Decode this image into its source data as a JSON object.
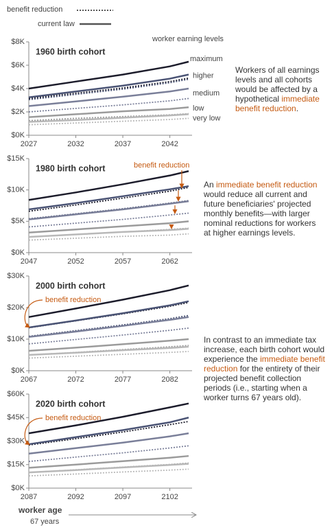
{
  "legend": [
    {
      "name": "benefit reduction",
      "dashed": true
    },
    {
      "name": "current law",
      "dashed": false
    }
  ],
  "levels_title": "worker earning levels",
  "x_axis_title": "worker age",
  "x_axis_subtitle": "67 years",
  "notes": [
    [
      {
        "text": "Workers of all earnings levels and all cohorts would be affected by a hypothetical ",
        "highlight": false
      },
      {
        "text": "immediate benefit reduction",
        "highlight": true
      },
      {
        "text": ".",
        "highlight": false
      }
    ],
    [
      {
        "text": "An ",
        "highlight": false
      },
      {
        "text": "immediate benefit reduction",
        "highlight": true
      },
      {
        "text": " would reduce all current and future beneficiaries' projected monthly benefits—with larger nominal reductions for workers at higher earnings levels.",
        "highlight": false
      }
    ],
    [
      {
        "text": "In contrast to an immediate tax increase, each birth cohort would experience the ",
        "highlight": false
      },
      {
        "text": "immediate benefit reduction",
        "highlight": true
      },
      {
        "text": " for the entirety of their projected benefit collection periods (i.e., starting when a worker turns 67 years old).",
        "highlight": false
      }
    ]
  ],
  "chart_data": [
    {
      "type": "line",
      "title": "1960 birth cohort",
      "x": [
        2027,
        2032,
        2037,
        2042,
        2044
      ],
      "xlim": [
        2027,
        2044
      ],
      "xticks": [
        2027,
        2032,
        2037,
        2042
      ],
      "ylim": [
        0,
        8000
      ],
      "yticks": [
        {
          "value": 0,
          "label": "$0K"
        },
        {
          "value": 2000,
          "label": "$2K"
        },
        {
          "value": 4000,
          "label": "$4K"
        },
        {
          "value": 6000,
          "label": "$6K"
        },
        {
          "value": 8000,
          "label": "$8K"
        }
      ],
      "series": [
        {
          "name": "maximum",
          "color": "#1c1c2b",
          "dashed": false,
          "values": [
            4000,
            4600,
            5200,
            5900,
            6300
          ]
        },
        {
          "color": "#1c1c2b",
          "dashed": true,
          "values": [
            3150,
            3600,
            4050,
            4600,
            4900
          ]
        },
        {
          "name": "higher",
          "color": "#4a5374",
          "dashed": false,
          "values": [
            3250,
            3750,
            4250,
            4850,
            5200
          ]
        },
        {
          "color": "#4a5374",
          "dashed": true,
          "values": [
            3050,
            3500,
            3950,
            4500,
            4800
          ]
        },
        {
          "name": "medium",
          "color": "#7a7f99",
          "dashed": false,
          "values": [
            2500,
            2900,
            3300,
            3750,
            4000
          ]
        },
        {
          "color": "#7a7f99",
          "dashed": true,
          "values": [
            2000,
            2300,
            2600,
            2950,
            3150
          ]
        },
        {
          "name": "low",
          "color": "#9b9b9b",
          "dashed": false,
          "values": [
            1550,
            1800,
            2050,
            2250,
            2400
          ]
        },
        {
          "color": "#9b9b9b",
          "dashed": true,
          "values": [
            1250,
            1450,
            1600,
            1750,
            1850
          ]
        },
        {
          "name": "very low",
          "color": "#b8b8b8",
          "dashed": false,
          "values": [
            1150,
            1300,
            1500,
            1700,
            1800
          ]
        },
        {
          "color": "#b8b8b8",
          "dashed": true,
          "values": [
            900,
            1050,
            1200,
            1350,
            1450
          ]
        }
      ]
    },
    {
      "type": "line",
      "title": "1980 birth cohort",
      "annotation": "benefit reduction",
      "x": [
        2047,
        2052,
        2057,
        2062,
        2064
      ],
      "xlim": [
        2047,
        2064
      ],
      "xticks": [
        2047,
        2052,
        2057,
        2062
      ],
      "ylim": [
        0,
        15000
      ],
      "yticks": [
        {
          "value": 0,
          "label": "$0K"
        },
        {
          "value": 5000,
          "label": "$5K"
        },
        {
          "value": 10000,
          "label": "$10K"
        },
        {
          "value": 15000,
          "label": "$15K"
        }
      ],
      "series": [
        {
          "color": "#1c1c2b",
          "dashed": false,
          "values": [
            8400,
            9600,
            10900,
            12300,
            13000
          ]
        },
        {
          "color": "#1c1c2b",
          "dashed": true,
          "values": [
            6600,
            7600,
            8700,
            9800,
            10400
          ]
        },
        {
          "color": "#4a5374",
          "dashed": false,
          "values": [
            6900,
            7900,
            9000,
            10100,
            10600
          ]
        },
        {
          "color": "#4a5374",
          "dashed": true,
          "values": [
            5400,
            6200,
            7000,
            7900,
            8300
          ]
        },
        {
          "color": "#7a7f99",
          "dashed": false,
          "values": [
            5300,
            6100,
            6900,
            7800,
            8200
          ]
        },
        {
          "color": "#7a7f99",
          "dashed": true,
          "values": [
            4100,
            4700,
            5300,
            6000,
            6300
          ]
        },
        {
          "color": "#9b9b9b",
          "dashed": false,
          "values": [
            3200,
            3700,
            4200,
            4700,
            5000
          ]
        },
        {
          "color": "#9b9b9b",
          "dashed": true,
          "values": [
            2500,
            2900,
            3300,
            3700,
            3900
          ]
        },
        {
          "color": "#b8b8b8",
          "dashed": false,
          "values": [
            2500,
            2900,
            3300,
            3600,
            3800
          ]
        },
        {
          "color": "#b8b8b8",
          "dashed": true,
          "values": [
            2000,
            2300,
            2600,
            2800,
            3000
          ]
        }
      ]
    },
    {
      "type": "line",
      "title": "2000 birth cohort",
      "annotation": "benefit reduction",
      "x": [
        2067,
        2072,
        2077,
        2082,
        2084
      ],
      "xlim": [
        2067,
        2084
      ],
      "xticks": [
        2067,
        2072,
        2077,
        2082
      ],
      "ylim": [
        0,
        30000
      ],
      "yticks": [
        {
          "value": 0,
          "label": "$0K"
        },
        {
          "value": 10000,
          "label": "$10K"
        },
        {
          "value": 20000,
          "label": "$20K"
        },
        {
          "value": 30000,
          "label": "$30K"
        }
      ],
      "series": [
        {
          "color": "#1c1c2b",
          "dashed": false,
          "values": [
            17000,
            19700,
            22500,
            25500,
            27000
          ]
        },
        {
          "color": "#1c1c2b",
          "dashed": true,
          "values": [
            13600,
            15800,
            18000,
            20400,
            21600
          ]
        },
        {
          "color": "#4a5374",
          "dashed": false,
          "values": [
            13700,
            15900,
            18200,
            20700,
            22000
          ]
        },
        {
          "color": "#4a5374",
          "dashed": true,
          "values": [
            10900,
            12700,
            14500,
            16500,
            17500
          ]
        },
        {
          "color": "#7a7f99",
          "dashed": false,
          "values": [
            10700,
            12400,
            14200,
            16100,
            17000
          ]
        },
        {
          "color": "#7a7f99",
          "dashed": true,
          "values": [
            8500,
            9900,
            11300,
            12800,
            13500
          ]
        },
        {
          "color": "#9b9b9b",
          "dashed": false,
          "values": [
            6300,
            7300,
            8400,
            9500,
            10000
          ]
        },
        {
          "color": "#9b9b9b",
          "dashed": true,
          "values": [
            5000,
            5800,
            6700,
            7600,
            8000
          ]
        },
        {
          "color": "#b8b8b8",
          "dashed": false,
          "values": [
            5000,
            5700,
            6500,
            7200,
            7600
          ]
        },
        {
          "color": "#b8b8b8",
          "dashed": true,
          "values": [
            4000,
            4600,
            5200,
            5800,
            6100
          ]
        }
      ]
    },
    {
      "type": "line",
      "title": "2020 birth cohort",
      "annotation": "benefit reduction",
      "x": [
        2087,
        2092,
        2097,
        2102,
        2104
      ],
      "xlim": [
        2087,
        2104
      ],
      "xticks": [
        2087,
        2092,
        2097,
        2102
      ],
      "ylim": [
        0,
        60000
      ],
      "yticks": [
        {
          "value": 0,
          "label": "$0K"
        },
        {
          "value": 15000,
          "label": "$15K"
        },
        {
          "value": 30000,
          "label": "$30K"
        },
        {
          "value": 45000,
          "label": "$45K"
        },
        {
          "value": 60000,
          "label": "$60K"
        }
      ],
      "series": [
        {
          "color": "#1c1c2b",
          "dashed": false,
          "values": [
            35000,
            40000,
            45500,
            51500,
            54000
          ]
        },
        {
          "color": "#1c1c2b",
          "dashed": true,
          "values": [
            27500,
            31500,
            35800,
            40500,
            42500
          ]
        },
        {
          "color": "#4a5374",
          "dashed": false,
          "values": [
            28000,
            32500,
            37000,
            42000,
            45000
          ]
        },
        {
          "color": "#4a5374",
          "dashed": true,
          "values": [
            22000,
            25500,
            29000,
            33000,
            35000
          ]
        },
        {
          "color": "#7a7f99",
          "dashed": false,
          "values": [
            22000,
            25500,
            29000,
            33000,
            35000
          ]
        },
        {
          "color": "#7a7f99",
          "dashed": true,
          "values": [
            17000,
            19800,
            22500,
            25600,
            27000
          ]
        },
        {
          "color": "#9b9b9b",
          "dashed": false,
          "values": [
            13000,
            15000,
            17200,
            19400,
            20500
          ]
        },
        {
          "color": "#9b9b9b",
          "dashed": true,
          "values": [
            10000,
            11700,
            13400,
            15100,
            16000
          ]
        },
        {
          "color": "#b8b8b8",
          "dashed": false,
          "values": [
            10000,
            11500,
            13200,
            14800,
            15500
          ]
        },
        {
          "color": "#b8b8b8",
          "dashed": true,
          "values": [
            7800,
            9000,
            10300,
            11500,
            12100
          ]
        }
      ]
    }
  ]
}
